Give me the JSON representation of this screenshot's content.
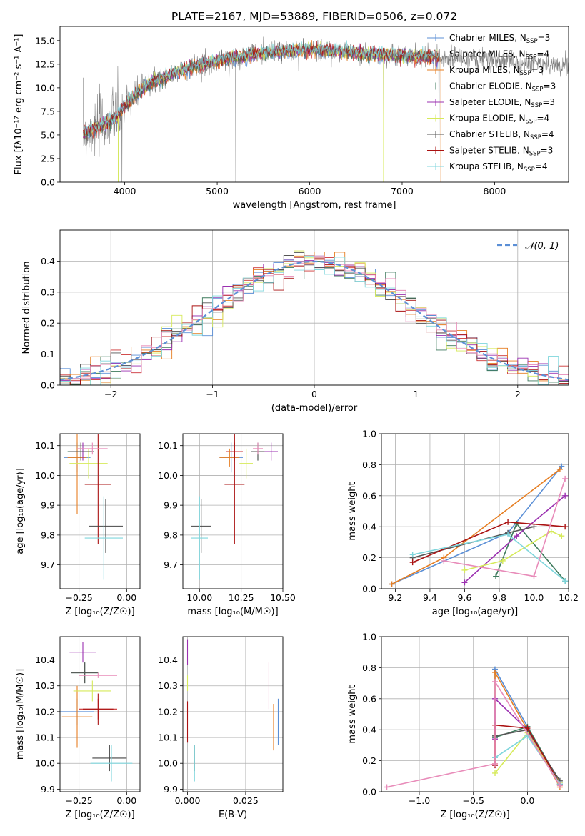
{
  "figure": {
    "title": "PLATE=2167, MJD=53889, FIBERID=0506, z=0.072",
    "colors": {
      "Chabrier MILES": "#5b8fd6",
      "Salpeter MILES": "#cc3333",
      "Kroupa MILES": "#e67e22",
      "Chabrier ELODIE": "#3d7a5c",
      "Salpeter ELODIE": "#9b30b0",
      "Kroupa ELODIE": "#d6ea5a",
      "Chabrier STELIB": "#555555",
      "Salpeter STELIB": "#aa1111",
      "Kroupa STELIB": "#7fd6dc",
      "extra": "#e88bb9"
    }
  },
  "chart_data": [
    {
      "id": "spectrum",
      "type": "line",
      "title": "PLATE=2167, MJD=53889, FIBERID=0506, z=0.072",
      "xlabel": "wavelength [Angstrom, rest frame]",
      "ylabel": "Flux [fλ10⁻¹⁷ erg cm⁻² s⁻¹ A⁻¹]",
      "xlim": [
        3300,
        8800
      ],
      "ylim": [
        0,
        16.5
      ],
      "xticks": [
        4000,
        5000,
        6000,
        7000,
        8000
      ],
      "yticks": [
        0.0,
        2.5,
        5.0,
        7.5,
        10.0,
        12.5,
        15.0
      ],
      "grid": false,
      "legend_position": "right",
      "legend": [
        {
          "label": "Chabrier MILES, N",
          "sub": "SSP",
          "suffix": "=3",
          "color": "#5b8fd6"
        },
        {
          "label": "Salpeter MILES, N",
          "sub": "SSP",
          "suffix": "=4",
          "color": "#cc3333"
        },
        {
          "label": "Kroupa MILES, N",
          "sub": "SSP",
          "suffix": "=3",
          "color": "#e67e22"
        },
        {
          "label": "Chabrier ELODIE, N",
          "sub": "SSP",
          "suffix": "=3",
          "color": "#3d7a5c"
        },
        {
          "label": "Salpeter ELODIE, N",
          "sub": "SSP",
          "suffix": "=3",
          "color": "#9b30b0"
        },
        {
          "label": "Kroupa ELODIE, N",
          "sub": "SSP",
          "suffix": "=4",
          "color": "#d6ea5a"
        },
        {
          "label": "Chabrier STELIB, N",
          "sub": "SSP",
          "suffix": "=4",
          "color": "#555555"
        },
        {
          "label": "Salpeter STELIB, N",
          "sub": "SSP",
          "suffix": "=3",
          "color": "#aa1111"
        },
        {
          "label": "Kroupa STELIB, N",
          "sub": "SSP",
          "suffix": "=4",
          "color": "#7fd6dc"
        }
      ],
      "continuum": {
        "x": [
          3550,
          3700,
          3800,
          3900,
          4000,
          4100,
          4200,
          4300,
          4400,
          4600,
          4800,
          5000,
          5200,
          5400,
          5600,
          5800,
          6000,
          6200,
          6400,
          6600,
          6800,
          7000,
          7200,
          7400,
          7600,
          7800,
          8000,
          8200,
          8400,
          8800
        ],
        "y": [
          5.0,
          5.8,
          6.2,
          6.8,
          8.0,
          9.0,
          10.0,
          10.6,
          11.0,
          11.8,
          12.4,
          12.8,
          13.2,
          13.6,
          13.8,
          13.9,
          14.0,
          13.9,
          13.8,
          13.6,
          13.5,
          13.4,
          13.3,
          13.2,
          13.1,
          13.0,
          12.9,
          12.8,
          12.6,
          12.4
        ]
      },
      "models_xrange": [
        3550,
        7400
      ],
      "data_xrange": [
        3550,
        8800
      ],
      "spikes": [
        5200,
        6800,
        7400,
        3930,
        3970
      ]
    },
    {
      "id": "residual_hist",
      "type": "line",
      "xlabel": "(data-model)/error",
      "ylabel": "Normed distribution",
      "xlim": [
        -2.5,
        2.5
      ],
      "ylim": [
        0,
        0.5
      ],
      "xticks": [
        -2,
        -1,
        0,
        1,
        2
      ],
      "yticks": [
        0.0,
        0.1,
        0.2,
        0.3,
        0.4
      ],
      "grid": true,
      "legend_position": "top-right",
      "legend_label": "𝒩(0, 1)",
      "bin_width": 0.1
    },
    {
      "id": "age_vs_Z",
      "type": "scatter",
      "xlabel": "Z [log₁₀(Z/Z☉)]",
      "ylabel": "age  [log₁₀(age/yr)]",
      "xlim": [
        -0.35,
        0.07
      ],
      "ylim": [
        9.62,
        10.14
      ],
      "xticks": [
        -0.25,
        0.0
      ],
      "yticks": [
        9.7,
        9.8,
        9.9,
        10.0,
        10.1
      ],
      "grid": true,
      "points": [
        {
          "x": -0.26,
          "y": 10.06,
          "xerr": 0.07,
          "yerr": 0.05,
          "color": "#5b8fd6"
        },
        {
          "x": -0.24,
          "y": 10.08,
          "xerr": 0.06,
          "yerr": 0.03,
          "color": "#cc3333"
        },
        {
          "x": -0.26,
          "y": 10.06,
          "xerr": 0.05,
          "yerr": 0.19,
          "color": "#e67e22"
        },
        {
          "x": -0.24,
          "y": 10.08,
          "xerr": 0.07,
          "yerr": 0.03,
          "color": "#3d7a5c"
        },
        {
          "x": -0.23,
          "y": 10.08,
          "xerr": 0.05,
          "yerr": 0.03,
          "color": "#9b30b0"
        },
        {
          "x": -0.2,
          "y": 10.04,
          "xerr": 0.1,
          "yerr": 0.05,
          "color": "#d6ea5a"
        },
        {
          "x": -0.24,
          "y": 10.08,
          "xerr": 0.06,
          "yerr": 0.03,
          "color": "#555555"
        },
        {
          "x": -0.15,
          "y": 9.97,
          "xerr": 0.07,
          "yerr": 0.2,
          "color": "#aa1111"
        },
        {
          "x": -0.11,
          "y": 9.83,
          "xerr": 0.09,
          "yerr": 0.09,
          "color": "#444444"
        },
        {
          "x": -0.12,
          "y": 9.79,
          "xerr": 0.1,
          "yerr": 0.14,
          "color": "#7fd6dc"
        },
        {
          "x": -0.18,
          "y": 10.09,
          "xerr": 0.08,
          "yerr": 0.02,
          "color": "#e88bb9"
        }
      ]
    },
    {
      "id": "age_vs_mass",
      "type": "scatter",
      "xlabel": "mass [log₁₀(M/M☉)]",
      "ylabel": "",
      "xlim": [
        9.9,
        10.5
      ],
      "ylim": [
        9.62,
        10.14
      ],
      "xticks": [
        10.0,
        10.25,
        10.5
      ],
      "yticks": [
        9.7,
        9.8,
        9.9,
        10.0,
        10.1
      ],
      "grid": true,
      "points": [
        {
          "x": 10.19,
          "y": 10.06,
          "xerr": 0.07,
          "yerr": 0.05,
          "color": "#5b8fd6"
        },
        {
          "x": 10.21,
          "y": 10.08,
          "xerr": 0.05,
          "yerr": 0.03,
          "color": "#cc3333"
        },
        {
          "x": 10.18,
          "y": 10.06,
          "xerr": 0.06,
          "yerr": 0.03,
          "color": "#e67e22"
        },
        {
          "x": 10.35,
          "y": 10.08,
          "xerr": 0.04,
          "yerr": 0.03,
          "color": "#3d7a5c"
        },
        {
          "x": 10.43,
          "y": 10.08,
          "xerr": 0.04,
          "yerr": 0.03,
          "color": "#9b30b0"
        },
        {
          "x": 10.28,
          "y": 10.04,
          "xerr": 0.04,
          "yerr": 0.05,
          "color": "#d6ea5a"
        },
        {
          "x": 10.35,
          "y": 10.08,
          "xerr": 0.04,
          "yerr": 0.03,
          "color": "#555555"
        },
        {
          "x": 10.21,
          "y": 9.97,
          "xerr": 0.06,
          "yerr": 0.2,
          "color": "#aa1111"
        },
        {
          "x": 10.01,
          "y": 9.83,
          "xerr": 0.06,
          "yerr": 0.09,
          "color": "#444444"
        },
        {
          "x": 10.0,
          "y": 9.79,
          "xerr": 0.05,
          "yerr": 0.14,
          "color": "#7fd6dc"
        },
        {
          "x": 10.35,
          "y": 10.09,
          "xerr": 0.03,
          "yerr": 0.02,
          "color": "#e88bb9"
        }
      ]
    },
    {
      "id": "massweight_vs_age",
      "type": "line",
      "xlabel": "age  [log₁₀(age/yr)]",
      "ylabel": "mass weight",
      "xlim": [
        9.12,
        10.2
      ],
      "ylim": [
        0,
        1.0
      ],
      "xticks": [
        9.2,
        9.4,
        9.6,
        9.8,
        10.0,
        10.2
      ],
      "yticks": [
        0.0,
        0.2,
        0.4,
        0.6,
        0.8,
        1.0
      ],
      "grid": true,
      "series": [
        {
          "color": "#5b8fd6",
          "x": [
            9.18,
            9.85,
            10.16
          ],
          "y": [
            0.03,
            0.36,
            0.79
          ]
        },
        {
          "color": "#e67e22",
          "x": [
            9.18,
            9.48,
            10.15
          ],
          "y": [
            0.03,
            0.2,
            0.77
          ]
        },
        {
          "color": "#3d7a5c",
          "x": [
            9.78,
            9.9,
            10.18
          ],
          "y": [
            0.08,
            0.42,
            0.05
          ]
        },
        {
          "color": "#9b30b0",
          "x": [
            9.6,
            9.9,
            10.18
          ],
          "y": [
            0.04,
            0.34,
            0.6
          ]
        },
        {
          "color": "#d6ea5a",
          "x": [
            9.6,
            9.82,
            10.1,
            10.16
          ],
          "y": [
            0.12,
            0.18,
            0.37,
            0.34
          ]
        },
        {
          "color": "#555555",
          "x": [
            9.3,
            9.85,
            10.0
          ],
          "y": [
            0.2,
            0.36,
            0.4
          ]
        },
        {
          "color": "#aa1111",
          "x": [
            9.3,
            9.85,
            10.18
          ],
          "y": [
            0.17,
            0.43,
            0.4
          ]
        },
        {
          "color": "#7fd6dc",
          "x": [
            9.3,
            9.85,
            10.18
          ],
          "y": [
            0.22,
            0.35,
            0.05
          ]
        },
        {
          "color": "#e88bb9",
          "x": [
            9.48,
            10.0,
            10.18
          ],
          "y": [
            0.18,
            0.08,
            0.71
          ]
        }
      ]
    },
    {
      "id": "mass_vs_Z",
      "type": "scatter",
      "xlabel": "Z [log₁₀(Z/Z☉)]",
      "ylabel": "mass [log₁₀(M/M☉)]",
      "xlim": [
        -0.35,
        0.07
      ],
      "ylim": [
        9.89,
        10.49
      ],
      "xticks": [
        -0.25,
        0.0
      ],
      "yticks": [
        9.9,
        10.0,
        10.1,
        10.2,
        10.3,
        10.4
      ],
      "grid": true,
      "points": [
        {
          "x": -0.26,
          "y": 10.2,
          "xerr": 0.09,
          "yerr": 0.05,
          "color": "#5b8fd6"
        },
        {
          "x": -0.15,
          "y": 10.21,
          "xerr": 0.1,
          "yerr": 0.04,
          "color": "#cc3333"
        },
        {
          "x": -0.26,
          "y": 10.18,
          "xerr": 0.08,
          "yerr": 0.12,
          "color": "#e67e22"
        },
        {
          "x": -0.22,
          "y": 10.35,
          "xerr": 0.07,
          "yerr": 0.04,
          "color": "#3d7a5c"
        },
        {
          "x": -0.23,
          "y": 10.43,
          "xerr": 0.07,
          "yerr": 0.04,
          "color": "#9b30b0"
        },
        {
          "x": -0.18,
          "y": 10.28,
          "xerr": 0.1,
          "yerr": 0.04,
          "color": "#d6ea5a"
        },
        {
          "x": -0.22,
          "y": 10.35,
          "xerr": 0.07,
          "yerr": 0.04,
          "color": "#555555"
        },
        {
          "x": -0.15,
          "y": 10.21,
          "xerr": 0.08,
          "yerr": 0.06,
          "color": "#aa1111"
        },
        {
          "x": -0.09,
          "y": 10.02,
          "xerr": 0.09,
          "yerr": 0.05,
          "color": "#444444"
        },
        {
          "x": -0.08,
          "y": 10.0,
          "xerr": 0.11,
          "yerr": 0.07,
          "color": "#7fd6dc"
        },
        {
          "x": -0.15,
          "y": 10.34,
          "xerr": 0.1,
          "yerr": 0.01,
          "color": "#e88bb9"
        }
      ]
    },
    {
      "id": "mass_vs_ebv",
      "type": "scatter",
      "xlabel": "E(B-V)",
      "ylabel": "",
      "xlim": [
        -0.002,
        0.041
      ],
      "ylim": [
        9.89,
        10.49
      ],
      "xticks": [
        0.0,
        0.025
      ],
      "yticks": [
        9.9,
        10.0,
        10.1,
        10.2,
        10.3,
        10.4
      ],
      "grid": true,
      "points": [
        {
          "x": 0.0,
          "y": 10.43,
          "xerr": 0,
          "yerr": 0.05,
          "color": "#9b30b0"
        },
        {
          "x": 0.0,
          "y": 10.31,
          "xerr": 0,
          "yerr": 0.03,
          "color": "#d6ea5a"
        },
        {
          "x": 0.0,
          "y": 10.16,
          "xerr": 0,
          "yerr": 0.08,
          "color": "#aa1111"
        },
        {
          "x": 0.003,
          "y": 10.02,
          "xerr": 0,
          "yerr": 0.05,
          "color": "#555555"
        },
        {
          "x": 0.003,
          "y": 10.0,
          "xerr": 0,
          "yerr": 0.07,
          "color": "#7fd6dc"
        },
        {
          "x": 0.035,
          "y": 10.3,
          "xerr": 0,
          "yerr": 0.09,
          "color": "#e88bb9"
        },
        {
          "x": 0.037,
          "y": 10.14,
          "xerr": 0,
          "yerr": 0.09,
          "color": "#e67e22"
        },
        {
          "x": 0.039,
          "y": 10.16,
          "xerr": 0,
          "yerr": 0.09,
          "color": "#5b8fd6"
        }
      ]
    },
    {
      "id": "massweight_vs_Z",
      "type": "line",
      "xlabel": "Z [log₁₀(Z/Z☉)]",
      "ylabel": "mass weight",
      "xlim": [
        -1.35,
        0.38
      ],
      "ylim": [
        0,
        1.0
      ],
      "xticks": [
        -1.0,
        -0.5,
        0.0
      ],
      "yticks": [
        0.0,
        0.2,
        0.4,
        0.6,
        0.8,
        1.0
      ],
      "grid": true,
      "series": [
        {
          "color": "#5b8fd6",
          "x": [
            -0.3,
            -0.3,
            0.3
          ],
          "y": [
            0.35,
            0.79,
            0.05
          ]
        },
        {
          "color": "#e67e22",
          "x": [
            -0.3,
            -0.3,
            0.3
          ],
          "y": [
            0.18,
            0.77,
            0.03
          ]
        },
        {
          "color": "#3d7a5c",
          "x": [
            -0.3,
            0.0,
            0.3
          ],
          "y": [
            0.35,
            0.42,
            0.06
          ]
        },
        {
          "color": "#9b30b0",
          "x": [
            -0.3,
            -0.3,
            0.0,
            0.3
          ],
          "y": [
            0.34,
            0.6,
            0.4,
            0.05
          ]
        },
        {
          "color": "#d6ea5a",
          "x": [
            -0.3,
            0.0,
            0.3
          ],
          "y": [
            0.12,
            0.38,
            0.06
          ]
        },
        {
          "color": "#555555",
          "x": [
            -0.3,
            0.0,
            0.3
          ],
          "y": [
            0.36,
            0.4,
            0.07
          ]
        },
        {
          "color": "#aa1111",
          "x": [
            -0.3,
            -0.3,
            0.0,
            0.3
          ],
          "y": [
            0.17,
            0.43,
            0.41,
            0.05
          ]
        },
        {
          "color": "#7fd6dc",
          "x": [
            -0.3,
            0.0,
            0.3
          ],
          "y": [
            0.22,
            0.36,
            0.05
          ]
        },
        {
          "color": "#e88bb9",
          "x": [
            -1.3,
            -0.3,
            -0.3,
            0.3
          ],
          "y": [
            0.03,
            0.18,
            0.71,
            0.04
          ]
        }
      ]
    }
  ]
}
